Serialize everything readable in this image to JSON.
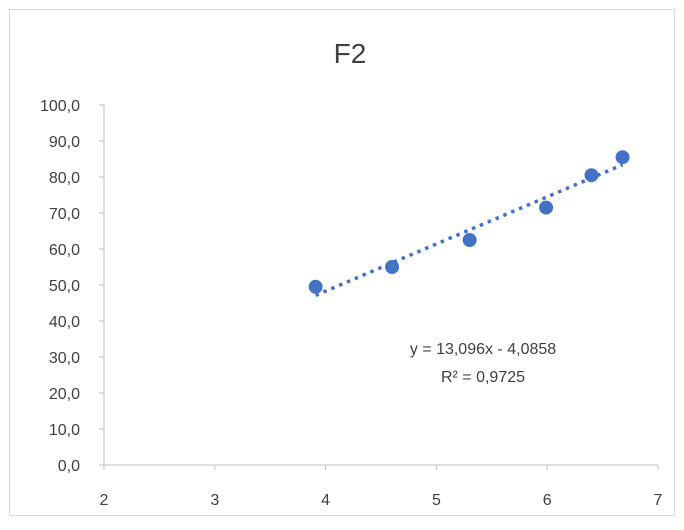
{
  "chart_data": {
    "type": "scatter",
    "title": "F2",
    "xlabel": "",
    "ylabel": "",
    "xlim": [
      2,
      7
    ],
    "ylim": [
      0,
      100
    ],
    "x_ticks": [
      2,
      3,
      4,
      5,
      6,
      7
    ],
    "x_tick_labels": [
      "2",
      "3",
      "4",
      "5",
      "6",
      "7"
    ],
    "y_ticks": [
      0,
      10,
      20,
      30,
      40,
      50,
      60,
      70,
      80,
      90,
      100
    ],
    "y_tick_labels": [
      "0,0",
      "10,0",
      "20,0",
      "30,0",
      "40,0",
      "50,0",
      "60,0",
      "70,0",
      "80,0",
      "90,0",
      "100,0"
    ],
    "grid": false,
    "legend": "none",
    "series": [
      {
        "x": [
          3.91,
          4.6,
          5.3,
          5.99,
          6.4,
          6.68
        ],
        "y": [
          49.5,
          55.0,
          62.5,
          71.5,
          80.5,
          85.5
        ],
        "color": "#4472C4"
      }
    ],
    "trendline": {
      "type": "linear",
      "slope": 13.096,
      "intercept": -4.0858,
      "style": "dotted",
      "color": "#4472C4",
      "equation_label": "y = 13,096x - 4,0858",
      "r2_label": "R² = 0,9725"
    },
    "colors": {
      "axis": "#BFBFBF",
      "text": "#404040",
      "border": "#D9D9D9",
      "marker": "#4472C4"
    }
  }
}
